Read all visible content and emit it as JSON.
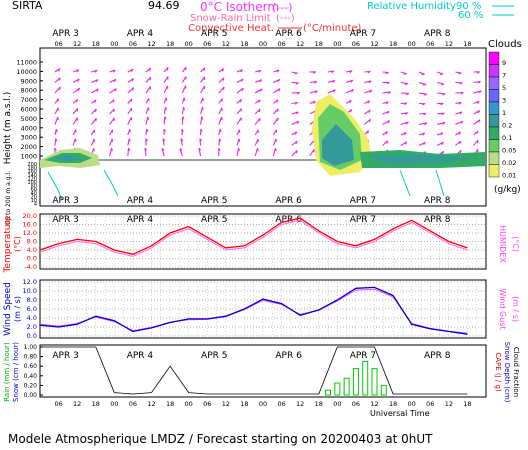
{
  "header": {
    "station": "SIRTA",
    "altitude": "94.69",
    "legend": {
      "isotherm": "0°C Isotherm",
      "isotherm_sym": "(---)",
      "snow_rain": "Snow-Rain Limit",
      "snow_rain_sym": "(---)",
      "convective": "Convective Heat.",
      "convective_unit": "(°C/minute)",
      "rh": "Relative Humidity",
      "rh_90": "90 %",
      "rh_60": "60 %"
    }
  },
  "dates": [
    "APR 3",
    "APR 4",
    "APR 5",
    "APR 6",
    "APR 7",
    "APR 8"
  ],
  "hours": [
    "06",
    "12",
    "18",
    "00"
  ],
  "cloud_scale": {
    "title": "Clouds",
    "unit": "(g/kg)",
    "levels": [
      "9",
      "7",
      "5",
      "3",
      "1",
      "0.2",
      "0.1",
      "0.05",
      "0.02",
      "0.01"
    ],
    "colors": [
      "#ff00ff",
      "#cc33ff",
      "#9966ff",
      "#6666ff",
      "#3399cc",
      "#339999",
      "#33aa66",
      "#66cc66",
      "#bbdd88",
      "#eeee66"
    ]
  },
  "panels": {
    "cloud": {
      "ylabel": "Height (m a.s.l.)",
      "ylabel_low": "Up to 200 m a.g.l.",
      "yticks": [
        "11000",
        "10000",
        "9000",
        "8000",
        "7000",
        "6000",
        "5000",
        "4000",
        "3000",
        "2000",
        "1000"
      ],
      "low_yticks": [
        "200",
        "180",
        "160",
        "140",
        "120",
        "100",
        "80",
        "60",
        "40",
        "20",
        "10",
        "4"
      ]
    },
    "temp": {
      "ylabel": "Temperature",
      "yunit": "(°C)",
      "rlabel": "HUMIDEX",
      "runit": "(°C)",
      "yticks": [
        "20.0",
        "16.0",
        "12.0",
        "8.0",
        "4.0",
        "0.0",
        "-4.0"
      ]
    },
    "wind": {
      "ylabel": "Wind Speed",
      "yunit": "(m / s)",
      "rlabel": "Wind Gust",
      "runit": "(m / s)",
      "yticks": [
        "12.0",
        "10.0",
        "8.0",
        "6.0",
        "4.0",
        "2.0",
        "0.0"
      ]
    },
    "rain": {
      "label1": "Rain (mm / hour)",
      "label2": "Snow (cm / hour)",
      "rlabel1": "CAPE (J / g)",
      "rlabel2": "Snow Depth (cm)",
      "rlabel3": "Cloud Fraction",
      "yticks": [
        "1.00",
        "0.80",
        "0.60",
        "0.40",
        "0.20",
        "0.00"
      ]
    }
  },
  "footer": {
    "xlabel": "Universal Time",
    "caption": "Modele Atmospherique LMDZ / Forecast starting on 20200403 at 0hUT"
  },
  "colors": {
    "temperature": "#ff0000",
    "humidex": "#ff66ff",
    "wind_speed": "#0000cc",
    "wind_gust": "#ff44ff",
    "wind_arrows": "#ee22ee",
    "rain": "#00cc00",
    "relative_humidity": "#00cccc"
  },
  "chart_data": [
    {
      "type": "heatmap",
      "title": "Clouds",
      "ylabel": "Height (m a.s.l.)",
      "ylim": [
        0,
        11500
      ],
      "note_levels": "cloud water content classes 0.01-9 g/kg",
      "regions": [
        {
          "period": "APR 3 00-18",
          "base_m": 600,
          "top_m": 1500,
          "max_class": "0.2"
        },
        {
          "period": "APR 6 18 - APR 7 06",
          "base_m": 0,
          "top_m": 7500,
          "max_class": "1"
        },
        {
          "period": "APR 7 06 - APR 8 18",
          "base_m": 900,
          "top_m": 1600,
          "max_class": "0.2"
        }
      ]
    },
    {
      "type": "line",
      "title": "Temperature / HUMIDEX",
      "ylabel": "Temperature (°C)",
      "ylim": [
        -4,
        20
      ],
      "x": [
        0,
        6,
        12,
        18,
        24,
        30,
        36,
        42,
        48,
        54,
        60,
        66,
        72,
        78,
        84,
        90,
        96,
        102,
        108,
        114,
        120,
        126,
        132,
        138
      ],
      "series": [
        {
          "name": "Temperature",
          "values": [
            4,
            7,
            9,
            8,
            4,
            2,
            6,
            12,
            15,
            10,
            5,
            6,
            11,
            17,
            19,
            13,
            8,
            6,
            9,
            14,
            18,
            13,
            8,
            5
          ]
        },
        {
          "name": "HUMIDEX",
          "values": [
            3,
            6,
            8,
            7,
            3,
            1,
            5,
            11,
            14,
            9,
            4,
            5,
            10,
            16,
            18,
            12,
            7,
            5,
            8,
            13,
            17,
            12,
            7,
            4
          ]
        }
      ]
    },
    {
      "type": "line",
      "title": "Wind Speed / Wind Gust",
      "ylabel": "Wind Speed (m / s)",
      "ylim": [
        0,
        12
      ],
      "x": [
        0,
        6,
        12,
        18,
        24,
        30,
        36,
        42,
        48,
        54,
        60,
        66,
        72,
        78,
        84,
        90,
        96,
        102,
        108,
        114,
        120,
        126,
        132,
        138
      ],
      "series": [
        {
          "name": "Wind Speed",
          "values": [
            2.4,
            2.0,
            2.6,
            4.4,
            3.4,
            1.0,
            1.8,
            3.0,
            3.8,
            3.8,
            4.4,
            6.0,
            8.2,
            7.2,
            4.6,
            5.8,
            8.0,
            10.6,
            10.8,
            9.0,
            2.6,
            1.6,
            1.0,
            0.4
          ]
        },
        {
          "name": "Wind Gust",
          "values": [
            2.6,
            2.2,
            2.8,
            4.2,
            3.2,
            1.2,
            1.9,
            3.1,
            3.6,
            3.7,
            4.3,
            5.9,
            7.9,
            7.0,
            4.8,
            5.7,
            7.8,
            10.2,
            10.4,
            8.7,
            2.8,
            1.7,
            1.1,
            0.6
          ]
        }
      ]
    },
    {
      "type": "bar",
      "title": "Rain / Cloud Fraction",
      "ylabel": "Rain (mm / hour)",
      "ylim": [
        0,
        1
      ],
      "rain": {
        "x": [
          93,
          96,
          99,
          102,
          105,
          108,
          111
        ],
        "values": [
          0.1,
          0.25,
          0.35,
          0.55,
          0.7,
          0.55,
          0.2
        ]
      },
      "cloud_fraction": {
        "x": [
          0,
          6,
          12,
          18,
          24,
          30,
          36,
          42,
          48,
          54,
          60,
          66,
          72,
          78,
          84,
          90,
          96,
          102,
          108,
          114,
          120,
          126,
          132,
          138
        ],
        "values": [
          1.0,
          1.0,
          1.0,
          1.0,
          0.05,
          0.02,
          0.05,
          0.6,
          0.05,
          0.02,
          0.02,
          0.02,
          0.02,
          0.02,
          0.02,
          0.02,
          1.0,
          1.0,
          1.0,
          0.02,
          0.02,
          0.02,
          0.02,
          0.02
        ]
      }
    }
  ]
}
